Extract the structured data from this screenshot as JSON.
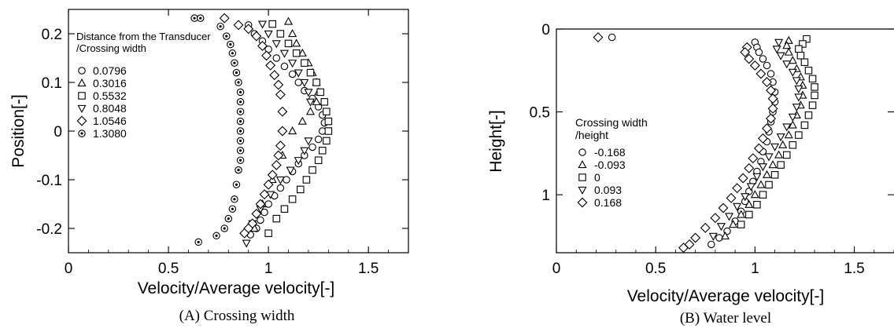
{
  "chart_data": [
    {
      "type": "scatter",
      "caption": "(A) Crossing width",
      "xlabel": "Velocity/Average velocity[-]",
      "ylabel": "Position[-]",
      "xlim": [
        0,
        1.7
      ],
      "ylim": [
        -0.25,
        0.25
      ],
      "xticks": [
        0,
        0.5,
        1,
        1.5
      ],
      "xtick_labels": [
        "0",
        "0.5",
        "1",
        "1.5"
      ],
      "yticks": [
        0.2,
        0.1,
        0,
        -0.1,
        -0.2
      ],
      "ytick_labels": [
        "0.2",
        "0.1",
        "0",
        "-0.1",
        "-0.2"
      ],
      "grid": false,
      "legend": {
        "title_lines": [
          "Distance from the Transducer",
          "/Crossing width"
        ],
        "placement": "top-left"
      },
      "series": [
        {
          "name": "0.0796",
          "marker": "circle",
          "x": [
            0.9,
            0.93,
            0.97,
            1.0,
            1.04,
            1.08,
            1.12,
            1.15,
            1.18,
            1.22,
            1.25,
            1.27,
            1.28,
            1.27,
            1.25,
            1.22,
            1.18,
            1.15,
            1.12,
            1.09,
            1.06,
            1.03,
            1.0,
            0.98,
            0.96,
            0.94,
            0.91
          ],
          "y": [
            0.218,
            0.2,
            0.185,
            0.168,
            0.15,
            0.133,
            0.117,
            0.1,
            0.083,
            0.067,
            0.05,
            0.033,
            0.017,
            0.0,
            -0.017,
            -0.033,
            -0.05,
            -0.067,
            -0.083,
            -0.1,
            -0.117,
            -0.133,
            -0.15,
            -0.167,
            -0.183,
            -0.2,
            -0.213
          ]
        },
        {
          "name": "0.3016",
          "marker": "triangle",
          "x": [
            1.1,
            1.12,
            1.14,
            1.17,
            1.2,
            1.22,
            1.24,
            1.25,
            1.24,
            1.21,
            1.17,
            1.12,
            1.07,
            1.02,
            0.97,
            0.93
          ],
          "y": [
            0.225,
            0.2,
            0.18,
            0.16,
            0.14,
            0.12,
            0.1,
            0.08,
            0.06,
            0.04,
            0.02,
            0.0,
            -0.05,
            -0.1,
            -0.15,
            -0.2
          ]
        },
        {
          "name": "0.5532",
          "marker": "square",
          "x": [
            1.02,
            1.06,
            1.1,
            1.14,
            1.18,
            1.21,
            1.24,
            1.26,
            1.28,
            1.29,
            1.3,
            1.3,
            1.29,
            1.27,
            1.25,
            1.22,
            1.19,
            1.16,
            1.12,
            1.08,
            1.04,
            1.0
          ],
          "y": [
            0.22,
            0.2,
            0.18,
            0.16,
            0.14,
            0.12,
            0.1,
            0.08,
            0.06,
            0.04,
            0.02,
            0.0,
            -0.02,
            -0.04,
            -0.06,
            -0.08,
            -0.1,
            -0.12,
            -0.14,
            -0.16,
            -0.18,
            -0.21
          ]
        },
        {
          "name": "0.8048",
          "marker": "triangle-down",
          "x": [
            0.97,
            1.0,
            1.04,
            1.08,
            1.12,
            1.15,
            1.18,
            1.2,
            1.21,
            1.2,
            1.18,
            1.15,
            1.11,
            1.06,
            1.01,
            0.96,
            0.92,
            0.89
          ],
          "y": [
            0.22,
            0.2,
            0.18,
            0.16,
            0.14,
            0.12,
            0.1,
            0.08,
            0.06,
            -0.02,
            -0.04,
            -0.06,
            -0.08,
            -0.1,
            -0.13,
            -0.16,
            -0.19,
            -0.23
          ]
        },
        {
          "name": "1.0546",
          "marker": "diamond",
          "x": [
            0.78,
            0.85,
            0.9,
            0.94,
            0.97,
            0.99,
            1.01,
            1.03,
            1.05,
            1.06,
            1.07,
            1.07,
            1.06,
            1.05,
            1.04,
            1.02,
            1.0,
            0.98,
            0.96,
            0.94,
            0.92,
            0.9,
            0.88
          ],
          "y": [
            0.232,
            0.218,
            0.21,
            0.195,
            0.175,
            0.155,
            0.135,
            0.115,
            0.095,
            0.075,
            0.04,
            0.0,
            -0.03,
            -0.05,
            -0.07,
            -0.09,
            -0.11,
            -0.13,
            -0.15,
            -0.17,
            -0.19,
            -0.2,
            -0.21
          ]
        },
        {
          "name": "1.3080",
          "marker": "bullseye",
          "x": [
            0.63,
            0.66,
            0.76,
            0.79,
            0.81,
            0.82,
            0.83,
            0.84,
            0.85,
            0.86,
            0.86,
            0.86,
            0.86,
            0.86,
            0.86,
            0.86,
            0.86,
            0.85,
            0.84,
            0.83,
            0.82,
            0.8,
            0.78,
            0.74,
            0.65
          ],
          "y": [
            0.232,
            0.232,
            0.215,
            0.195,
            0.178,
            0.16,
            0.14,
            0.12,
            0.1,
            0.08,
            0.06,
            0.04,
            0.02,
            0.0,
            -0.02,
            -0.04,
            -0.06,
            -0.08,
            -0.11,
            -0.14,
            -0.16,
            -0.18,
            -0.2,
            -0.215,
            -0.228
          ]
        }
      ]
    },
    {
      "type": "scatter",
      "caption": "(B) Water level",
      "xlabel": "Velocity/Average velocity[-]",
      "ylabel": "Height[-]",
      "xlim": [
        0,
        1.7
      ],
      "ylim": [
        0,
        1.35
      ],
      "y_inverted": true,
      "xticks": [
        0,
        0.5,
        1,
        1.5
      ],
      "xtick_labels": [
        "0",
        "0.5",
        "1",
        "1.5"
      ],
      "yticks": [
        0,
        0.5,
        1
      ],
      "ytick_labels": [
        "0",
        "0.5",
        "1"
      ],
      "grid": false,
      "legend": {
        "title_lines": [
          "Crossing width",
          "/height"
        ],
        "placement": "top-left"
      },
      "series": [
        {
          "name": "-0.168",
          "marker": "circle",
          "x": [
            0.28,
            1.0,
            1.01,
            1.02,
            1.04,
            1.06,
            1.08,
            1.09,
            1.1,
            1.1,
            1.09,
            1.08,
            1.07,
            1.06,
            1.04,
            1.03,
            1.01,
            0.99,
            0.97,
            0.95,
            0.93,
            0.9,
            0.86,
            0.82,
            0.78
          ],
          "y": [
            0.05,
            0.08,
            0.11,
            0.14,
            0.18,
            0.22,
            0.27,
            0.32,
            0.38,
            0.44,
            0.5,
            0.56,
            0.62,
            0.68,
            0.74,
            0.8,
            0.86,
            0.92,
            0.98,
            1.04,
            1.1,
            1.16,
            1.22,
            1.26,
            1.3
          ]
        },
        {
          "name": "-0.093",
          "marker": "triangle",
          "x": [
            1.17,
            1.16,
            1.17,
            1.19,
            1.21,
            1.23,
            1.24,
            1.24,
            1.23,
            1.21,
            1.19,
            1.17,
            1.14,
            1.12,
            1.09,
            1.06,
            1.03,
            1.0,
            0.97,
            0.93,
            0.89,
            0.85
          ],
          "y": [
            0.07,
            0.1,
            0.14,
            0.19,
            0.24,
            0.29,
            0.34,
            0.4,
            0.46,
            0.52,
            0.58,
            0.64,
            0.7,
            0.76,
            0.82,
            0.88,
            0.94,
            1.0,
            1.06,
            1.12,
            1.18,
            1.25
          ]
        },
        {
          "name": "0",
          "marker": "square",
          "x": [
            1.26,
            1.24,
            1.22,
            1.23,
            1.25,
            1.27,
            1.29,
            1.3,
            1.3,
            1.29,
            1.27,
            1.25,
            1.22,
            1.19,
            1.16,
            1.13,
            1.1,
            1.07,
            1.04,
            1.01,
            0.97,
            0.93
          ],
          "y": [
            0.06,
            0.09,
            0.12,
            0.16,
            0.2,
            0.25,
            0.3,
            0.35,
            0.4,
            0.46,
            0.52,
            0.58,
            0.64,
            0.7,
            0.76,
            0.82,
            0.88,
            0.94,
            1.0,
            1.06,
            1.12,
            1.18
          ]
        },
        {
          "name": "0.093",
          "marker": "triangle-down",
          "x": [
            1.12,
            1.11,
            1.13,
            1.16,
            1.19,
            1.21,
            1.22,
            1.22,
            1.21,
            1.19,
            1.16,
            1.13,
            1.1,
            1.07,
            1.04,
            1.01,
            0.98,
            0.95,
            0.91,
            0.87,
            0.83,
            0.79
          ],
          "y": [
            0.08,
            0.12,
            0.16,
            0.21,
            0.26,
            0.31,
            0.36,
            0.41,
            0.47,
            0.53,
            0.59,
            0.65,
            0.71,
            0.77,
            0.83,
            0.89,
            0.95,
            1.01,
            1.07,
            1.13,
            1.19,
            1.25
          ]
        },
        {
          "name": "0.168",
          "marker": "diamond",
          "x": [
            0.21,
            0.96,
            0.95,
            0.97,
            1.0,
            1.03,
            1.06,
            1.08,
            1.09,
            1.09,
            1.08,
            1.06,
            1.04,
            1.02,
            0.99,
            0.97,
            0.94,
            0.91,
            0.88,
            0.84,
            0.8,
            0.75,
            0.7,
            0.67,
            0.64
          ],
          "y": [
            0.05,
            0.11,
            0.14,
            0.18,
            0.22,
            0.27,
            0.32,
            0.37,
            0.42,
            0.48,
            0.54,
            0.6,
            0.66,
            0.72,
            0.78,
            0.84,
            0.9,
            0.96,
            1.02,
            1.08,
            1.14,
            1.2,
            1.26,
            1.3,
            1.32
          ]
        }
      ]
    }
  ]
}
